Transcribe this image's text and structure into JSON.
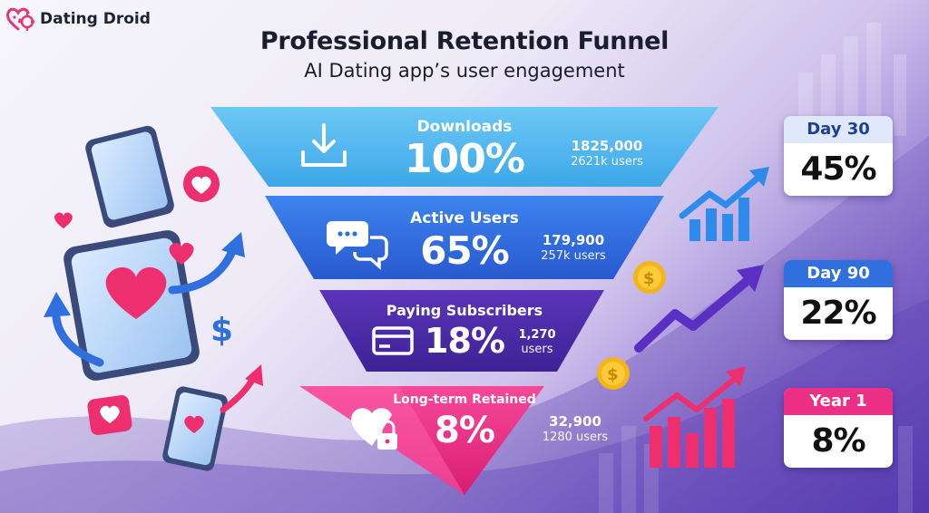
{
  "brand": {
    "name": "Dating Droid",
    "logo_icon": "heart-gear-icon"
  },
  "header": {
    "title": "Professional Retention Funnel",
    "subtitle": "AI Dating app’s user engagement"
  },
  "funnel": {
    "stages": [
      {
        "label": "Downloads",
        "percent": "100%",
        "stat_main": "1825,000",
        "stat_sub": "2621k users",
        "icon": "download-icon",
        "color": "#54b8ef"
      },
      {
        "label": "Active Users",
        "percent": "65%",
        "stat_main": "179,900",
        "stat_sub": "257k users",
        "icon": "chat-bubbles-icon",
        "color": "#2f6fde"
      },
      {
        "label": "Paying Subscribers",
        "percent": "18%",
        "stat_main": "1,270",
        "stat_sub": "users",
        "icon": "credit-card-icon",
        "color": "#4e2aa8"
      },
      {
        "label": "Long-term Retained",
        "percent": "8%",
        "stat_main": "32,900",
        "stat_sub": "1280 users",
        "icon": "heart-lock-icon",
        "color": "#ee2f86"
      }
    ]
  },
  "retention_cards": [
    {
      "period": "Day 30",
      "value": "45%",
      "header_color": "#2f6fde"
    },
    {
      "period": "Day 90",
      "value": "22%",
      "header_color": "#2f6fde"
    },
    {
      "period": "Year 1",
      "value": "8%",
      "header_color": "#ee2f86"
    }
  ]
}
